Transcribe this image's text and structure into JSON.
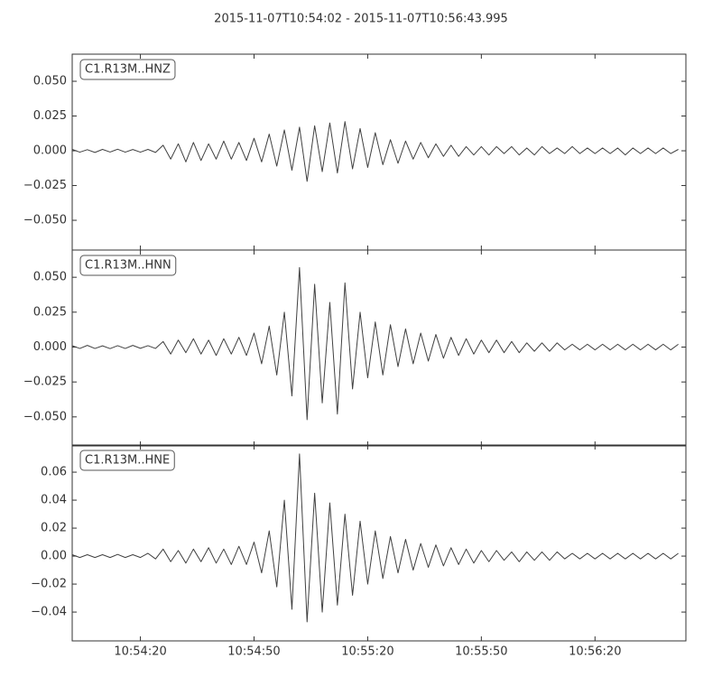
{
  "title": "2015-11-07T10:54:02  -  2015-11-07T10:56:43.995",
  "chart_data": [
    {
      "type": "line",
      "x": [
        "10:54:02",
        "10:54:04",
        "10:54:06",
        "10:54:08",
        "10:54:10",
        "10:54:12",
        "10:54:14",
        "10:54:16",
        "10:54:18",
        "10:54:20",
        "10:54:22",
        "10:54:24",
        "10:54:26",
        "10:54:28",
        "10:54:30",
        "10:54:32",
        "10:54:34",
        "10:54:36",
        "10:54:38",
        "10:54:40",
        "10:54:42",
        "10:54:44",
        "10:54:46",
        "10:54:48",
        "10:54:50",
        "10:54:52",
        "10:54:54",
        "10:54:56",
        "10:54:58",
        "10:55:00",
        "10:55:02",
        "10:55:04",
        "10:55:06",
        "10:55:08",
        "10:55:10",
        "10:55:12",
        "10:55:14",
        "10:55:16",
        "10:55:18",
        "10:55:20",
        "10:55:22",
        "10:55:24",
        "10:55:26",
        "10:55:28",
        "10:55:30",
        "10:55:32",
        "10:55:34",
        "10:55:36",
        "10:55:38",
        "10:55:40",
        "10:55:42",
        "10:55:44",
        "10:55:46",
        "10:55:48",
        "10:55:50",
        "10:55:52",
        "10:55:54",
        "10:55:56",
        "10:55:58",
        "10:56:00",
        "10:56:02",
        "10:56:04",
        "10:56:06",
        "10:56:08",
        "10:56:10",
        "10:56:12",
        "10:56:14",
        "10:56:16",
        "10:56:18",
        "10:56:20",
        "10:56:22",
        "10:56:24",
        "10:56:26",
        "10:56:28",
        "10:56:30",
        "10:56:32",
        "10:56:34",
        "10:56:36",
        "10:56:38",
        "10:56:40",
        "10:56:42"
      ],
      "series": [
        {
          "name": "C1.R13M..HNZ",
          "color": "#404040",
          "values": [
            0.001,
            -0.001,
            0.0008,
            -0.0012,
            0.001,
            -0.0009,
            0.0011,
            -0.001,
            0.0009,
            -0.001,
            0.001,
            -0.0012,
            0.004,
            -0.006,
            0.005,
            -0.008,
            0.006,
            -0.007,
            0.005,
            -0.006,
            0.007,
            -0.006,
            0.006,
            -0.007,
            0.009,
            -0.008,
            0.012,
            -0.011,
            0.015,
            -0.014,
            0.017,
            -0.022,
            0.018,
            -0.015,
            0.02,
            -0.016,
            0.021,
            -0.013,
            0.016,
            -0.012,
            0.013,
            -0.01,
            0.008,
            -0.009,
            0.007,
            -0.006,
            0.006,
            -0.005,
            0.005,
            -0.004,
            0.004,
            -0.004,
            0.003,
            -0.003,
            0.003,
            -0.003,
            0.003,
            -0.002,
            0.003,
            -0.003,
            0.002,
            -0.003,
            0.003,
            -0.002,
            0.002,
            -0.002,
            0.003,
            -0.002,
            0.002,
            -0.002,
            0.002,
            -0.002,
            0.002,
            -0.003,
            0.002,
            -0.002,
            0.002,
            -0.002,
            0.002,
            -0.002,
            0.001
          ]
        }
      ],
      "xlim": [
        "10:54:02",
        "10:56:43.995"
      ],
      "xticks": [
        "10:54:20",
        "10:54:50",
        "10:55:20",
        "10:55:50",
        "10:56:20"
      ],
      "ylim": [
        -0.0714,
        0.0695
      ],
      "yticks": [
        {
          "value": -0.05,
          "label": "−0.050"
        },
        {
          "value": -0.025,
          "label": "−0.025"
        },
        {
          "value": 0,
          "label": "0.000"
        },
        {
          "value": 0.025,
          "label": "0.025"
        },
        {
          "value": 0.05,
          "label": "0.050"
        }
      ]
    },
    {
      "type": "line",
      "x": [
        "10:54:02",
        "10:54:04",
        "10:54:06",
        "10:54:08",
        "10:54:10",
        "10:54:12",
        "10:54:14",
        "10:54:16",
        "10:54:18",
        "10:54:20",
        "10:54:22",
        "10:54:24",
        "10:54:26",
        "10:54:28",
        "10:54:30",
        "10:54:32",
        "10:54:34",
        "10:54:36",
        "10:54:38",
        "10:54:40",
        "10:54:42",
        "10:54:44",
        "10:54:46",
        "10:54:48",
        "10:54:50",
        "10:54:52",
        "10:54:54",
        "10:54:56",
        "10:54:58",
        "10:55:00",
        "10:55:02",
        "10:55:04",
        "10:55:06",
        "10:55:08",
        "10:55:10",
        "10:55:12",
        "10:55:14",
        "10:55:16",
        "10:55:18",
        "10:55:20",
        "10:55:22",
        "10:55:24",
        "10:55:26",
        "10:55:28",
        "10:55:30",
        "10:55:32",
        "10:55:34",
        "10:55:36",
        "10:55:38",
        "10:55:40",
        "10:55:42",
        "10:55:44",
        "10:55:46",
        "10:55:48",
        "10:55:50",
        "10:55:52",
        "10:55:54",
        "10:55:56",
        "10:55:58",
        "10:56:00",
        "10:56:02",
        "10:56:04",
        "10:56:06",
        "10:56:08",
        "10:56:10",
        "10:56:12",
        "10:56:14",
        "10:56:16",
        "10:56:18",
        "10:56:20",
        "10:56:22",
        "10:56:24",
        "10:56:26",
        "10:56:28",
        "10:56:30",
        "10:56:32",
        "10:56:34",
        "10:56:36",
        "10:56:38",
        "10:56:40",
        "10:56:42"
      ],
      "series": [
        {
          "name": "C1.R13M..HNN",
          "color": "#404040",
          "values": [
            0.001,
            -0.001,
            0.0012,
            -0.001,
            0.0009,
            -0.0011,
            0.001,
            -0.001,
            0.0012,
            -0.0009,
            0.001,
            -0.001,
            0.004,
            -0.005,
            0.005,
            -0.004,
            0.006,
            -0.005,
            0.005,
            -0.006,
            0.006,
            -0.005,
            0.007,
            -0.006,
            0.01,
            -0.012,
            0.015,
            -0.02,
            0.025,
            -0.035,
            0.057,
            -0.052,
            0.045,
            -0.04,
            0.032,
            -0.048,
            0.046,
            -0.03,
            0.025,
            -0.022,
            0.018,
            -0.02,
            0.016,
            -0.014,
            0.013,
            -0.012,
            0.01,
            -0.01,
            0.009,
            -0.008,
            0.007,
            -0.006,
            0.006,
            -0.005,
            0.005,
            -0.004,
            0.005,
            -0.004,
            0.004,
            -0.004,
            0.003,
            -0.003,
            0.003,
            -0.003,
            0.003,
            -0.002,
            0.002,
            -0.002,
            0.002,
            -0.002,
            0.002,
            -0.002,
            0.002,
            -0.002,
            0.002,
            -0.002,
            0.002,
            -0.002,
            0.002,
            -0.002,
            0.002
          ]
        }
      ],
      "xlim": [
        "10:54:02",
        "10:56:43.995"
      ],
      "xticks": [
        "10:54:20",
        "10:54:50",
        "10:55:20",
        "10:55:50",
        "10:56:20"
      ],
      "ylim": [
        -0.0708,
        0.0695
      ],
      "yticks": [
        {
          "value": -0.05,
          "label": "−0.050"
        },
        {
          "value": -0.025,
          "label": "−0.025"
        },
        {
          "value": 0,
          "label": "0.000"
        },
        {
          "value": 0.025,
          "label": "0.025"
        },
        {
          "value": 0.05,
          "label": "0.050"
        }
      ]
    },
    {
      "type": "line",
      "x": [
        "10:54:02",
        "10:54:04",
        "10:54:06",
        "10:54:08",
        "10:54:10",
        "10:54:12",
        "10:54:14",
        "10:54:16",
        "10:54:18",
        "10:54:20",
        "10:54:22",
        "10:54:24",
        "10:54:26",
        "10:54:28",
        "10:54:30",
        "10:54:32",
        "10:54:34",
        "10:54:36",
        "10:54:38",
        "10:54:40",
        "10:54:42",
        "10:54:44",
        "10:54:46",
        "10:54:48",
        "10:54:50",
        "10:54:52",
        "10:54:54",
        "10:54:56",
        "10:54:58",
        "10:55:00",
        "10:55:02",
        "10:55:04",
        "10:55:06",
        "10:55:08",
        "10:55:10",
        "10:55:12",
        "10:55:14",
        "10:55:16",
        "10:55:18",
        "10:55:20",
        "10:55:22",
        "10:55:24",
        "10:55:26",
        "10:55:28",
        "10:55:30",
        "10:55:32",
        "10:55:34",
        "10:55:36",
        "10:55:38",
        "10:55:40",
        "10:55:42",
        "10:55:44",
        "10:55:46",
        "10:55:48",
        "10:55:50",
        "10:55:52",
        "10:55:54",
        "10:55:56",
        "10:55:58",
        "10:56:00",
        "10:56:02",
        "10:56:04",
        "10:56:06",
        "10:56:08",
        "10:56:10",
        "10:56:12",
        "10:56:14",
        "10:56:16",
        "10:56:18",
        "10:56:20",
        "10:56:22",
        "10:56:24",
        "10:56:26",
        "10:56:28",
        "10:56:30",
        "10:56:32",
        "10:56:34",
        "10:56:36",
        "10:56:38",
        "10:56:40",
        "10:56:42"
      ],
      "series": [
        {
          "name": "C1.R13M..HNE",
          "color": "#404040",
          "values": [
            0.001,
            -0.001,
            0.001,
            -0.001,
            0.001,
            -0.001,
            0.0012,
            -0.001,
            0.001,
            -0.001,
            0.002,
            -0.002,
            0.005,
            -0.004,
            0.004,
            -0.005,
            0.005,
            -0.004,
            0.006,
            -0.005,
            0.005,
            -0.006,
            0.007,
            -0.006,
            0.01,
            -0.012,
            0.018,
            -0.022,
            0.04,
            -0.038,
            0.073,
            -0.047,
            0.045,
            -0.04,
            0.038,
            -0.035,
            0.03,
            -0.028,
            0.025,
            -0.02,
            0.018,
            -0.016,
            0.014,
            -0.012,
            0.012,
            -0.01,
            0.009,
            -0.008,
            0.008,
            -0.007,
            0.006,
            -0.006,
            0.005,
            -0.005,
            0.004,
            -0.004,
            0.004,
            -0.003,
            0.003,
            -0.004,
            0.003,
            -0.003,
            0.003,
            -0.003,
            0.003,
            -0.002,
            0.002,
            -0.002,
            0.002,
            -0.002,
            0.002,
            -0.002,
            0.002,
            -0.002,
            0.002,
            -0.002,
            0.002,
            -0.002,
            0.002,
            -0.002,
            0.002
          ]
        }
      ],
      "xlim": [
        "10:54:02",
        "10:56:43.995"
      ],
      "xticks": [
        "10:54:20",
        "10:54:50",
        "10:55:20",
        "10:55:50",
        "10:56:20"
      ],
      "ylim": [
        -0.0606,
        0.0794
      ],
      "yticks": [
        {
          "value": -0.04,
          "label": "−0.04"
        },
        {
          "value": -0.02,
          "label": "−0.02"
        },
        {
          "value": 0,
          "label": "0.00"
        },
        {
          "value": 0.02,
          "label": "0.02"
        },
        {
          "value": 0.04,
          "label": "0.04"
        },
        {
          "value": 0.06,
          "label": "0.06"
        }
      ]
    }
  ]
}
